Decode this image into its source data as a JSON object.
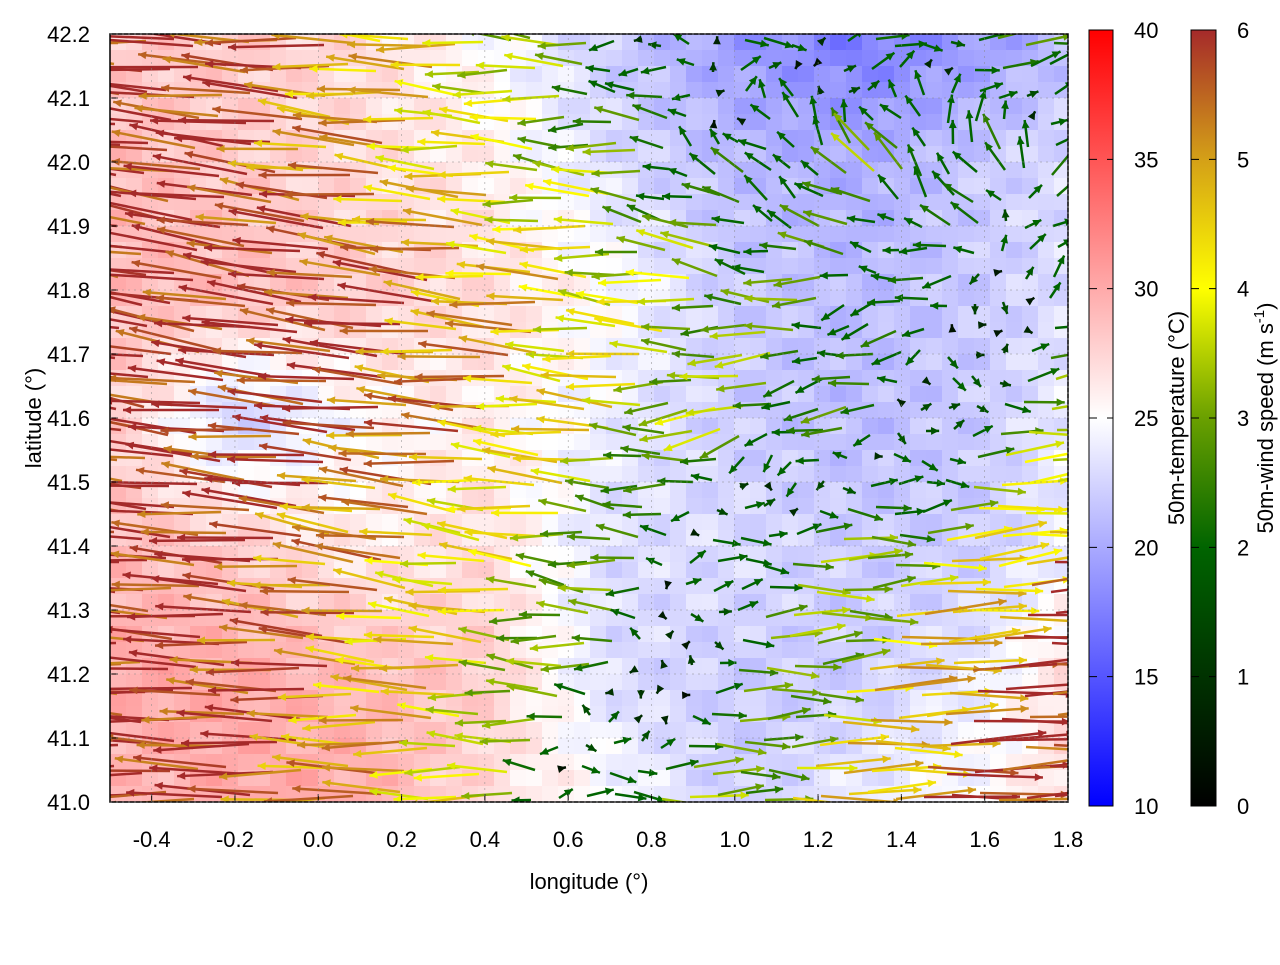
{
  "chart_data": {
    "type": "heatmap",
    "subtype": "vector_field_over_temperature",
    "xlabel": "longitude (°)",
    "ylabel": "latitude (°)",
    "xlim": [
      -0.5,
      1.8
    ],
    "ylim": [
      41.0,
      42.2
    ],
    "xticks": [
      "-0.4",
      "-0.2",
      "0.0",
      "0.2",
      "0.4",
      "0.6",
      "0.8",
      "1.0",
      "1.2",
      "1.4",
      "1.6",
      "1.8"
    ],
    "xtick_values": [
      -0.4,
      -0.2,
      0.0,
      0.2,
      0.4,
      0.6,
      0.8,
      1.0,
      1.2,
      1.4,
      1.6,
      1.8
    ],
    "yticks": [
      "41.0",
      "41.1",
      "41.2",
      "41.3",
      "41.4",
      "41.5",
      "41.6",
      "41.7",
      "41.8",
      "41.9",
      "42.0",
      "42.1",
      "42.2"
    ],
    "ytick_values": [
      41.0,
      41.1,
      41.2,
      41.3,
      41.4,
      41.5,
      41.6,
      41.7,
      41.8,
      41.9,
      42.0,
      42.1,
      42.2
    ],
    "grid_lon": [
      -0.5,
      -0.2,
      0.1,
      0.4,
      0.7,
      1.0,
      1.3,
      1.6,
      1.8
    ],
    "grid_lat": [
      42.2,
      42.0,
      41.8,
      41.6,
      41.4,
      41.2,
      41.0
    ],
    "temperature": [
      [
        28,
        28,
        27,
        25,
        22,
        19,
        17,
        19,
        21
      ],
      [
        29,
        28,
        27,
        26,
        23,
        21,
        20,
        22,
        23
      ],
      [
        29,
        29,
        28,
        27,
        25,
        22,
        21,
        22,
        23
      ],
      [
        28,
        22,
        25,
        26,
        24,
        22,
        21,
        22,
        24
      ],
      [
        29,
        28,
        26,
        27,
        23,
        23,
        22,
        22,
        24
      ],
      [
        30,
        30,
        29,
        28,
        23,
        22,
        22,
        24,
        27
      ],
      [
        29,
        30,
        30,
        27,
        25,
        22,
        24,
        25,
        27
      ]
    ],
    "wind_u": [
      [
        -6,
        -6,
        -5,
        -4,
        -2,
        1,
        1.5,
        2,
        3
      ],
      [
        -6,
        -6,
        -5,
        -4,
        -3,
        -1,
        -2,
        -1,
        1
      ],
      [
        -6,
        -6,
        -6,
        -5,
        -4,
        -3,
        -2,
        -1,
        2
      ],
      [
        -6,
        -6,
        -6,
        -5,
        -4,
        -3,
        -2,
        2,
        3
      ],
      [
        -6,
        -6,
        -5,
        -4,
        -3,
        2,
        3,
        4,
        6
      ],
      [
        -6,
        -6,
        -5,
        -4,
        -2,
        2,
        4,
        6,
        6
      ],
      [
        -6,
        -6,
        -5,
        -4,
        3,
        3,
        5,
        6,
        6
      ]
    ],
    "wind_v": [
      [
        0.3,
        0.3,
        0.2,
        0.2,
        0,
        0,
        0,
        0,
        0
      ],
      [
        0.8,
        0.8,
        0.5,
        0.3,
        0.2,
        1,
        2,
        2,
        1
      ],
      [
        1,
        1,
        0.8,
        0.5,
        0.3,
        0.5,
        -0.5,
        -0.5,
        1
      ],
      [
        1,
        0.5,
        0.5,
        0.3,
        0.5,
        -1,
        -0.3,
        0,
        0.5
      ],
      [
        0.5,
        0.4,
        0.8,
        0.5,
        0.2,
        0.2,
        0,
        0.5,
        0.3
      ],
      [
        0.3,
        0.3,
        0.3,
        0.3,
        0.1,
        0,
        0.2,
        0.2,
        0.2
      ],
      [
        0.1,
        0.1,
        0,
        0,
        0,
        0,
        0,
        0.2,
        0.2
      ]
    ],
    "colorbars": [
      {
        "label": "50m-temperature (°C)",
        "range": [
          10,
          40
        ],
        "ticks": [
          "10",
          "15",
          "20",
          "25",
          "30",
          "35",
          "40"
        ],
        "tick_values": [
          10,
          15,
          20,
          25,
          30,
          35,
          40
        ],
        "colors": [
          "#0000ff",
          "#ffffff",
          "#ff0000"
        ]
      },
      {
        "label_main": "50m-wind speed (m s",
        "label_sup": "-1",
        "label_end": ")",
        "range": [
          0,
          6
        ],
        "ticks": [
          "0",
          "1",
          "2",
          "3",
          "4",
          "5",
          "6"
        ],
        "tick_values": [
          0,
          1,
          2,
          3,
          4,
          5,
          6
        ],
        "colors": [
          "#000000",
          "#006400",
          "#6aa000",
          "#ffff00",
          "#d4a017",
          "#a52a2a"
        ]
      }
    ]
  }
}
